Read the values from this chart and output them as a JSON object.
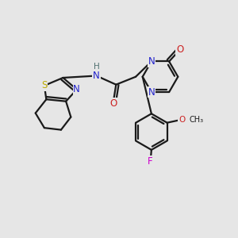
{
  "bg_color": "#e6e6e6",
  "colors": {
    "bond": "#1a1a1a",
    "N": "#2222cc",
    "O": "#cc2222",
    "S": "#bbaa00",
    "F": "#cc00cc",
    "H": "#507070",
    "C": "#1a1a1a"
  },
  "lw": 1.6,
  "fs": 8.5,
  "fss": 7.5
}
